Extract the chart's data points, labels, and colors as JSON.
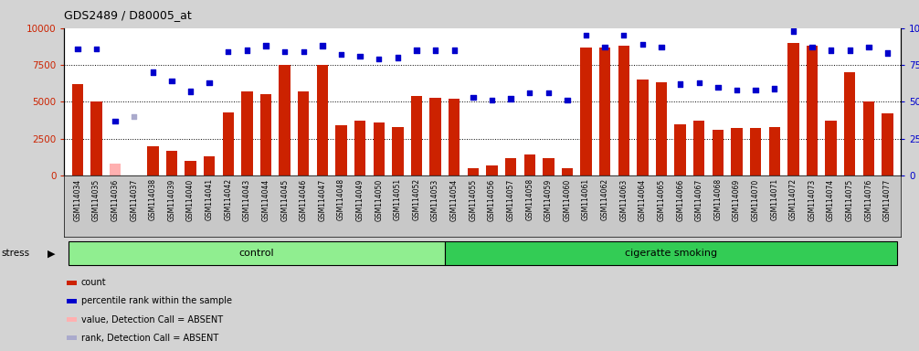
{
  "title": "GDS2489 / D80005_at",
  "samples": [
    "GSM114034",
    "GSM114035",
    "GSM114036",
    "GSM114037",
    "GSM114038",
    "GSM114039",
    "GSM114040",
    "GSM114041",
    "GSM114042",
    "GSM114043",
    "GSM114044",
    "GSM114045",
    "GSM114046",
    "GSM114047",
    "GSM114048",
    "GSM114049",
    "GSM114050",
    "GSM114051",
    "GSM114052",
    "GSM114053",
    "GSM114054",
    "GSM114055",
    "GSM114056",
    "GSM114057",
    "GSM114058",
    "GSM114059",
    "GSM114060",
    "GSM114061",
    "GSM114062",
    "GSM114063",
    "GSM114064",
    "GSM114065",
    "GSM114066",
    "GSM114067",
    "GSM114068",
    "GSM114069",
    "GSM114070",
    "GSM114071",
    "GSM114072",
    "GSM114073",
    "GSM114074",
    "GSM114075",
    "GSM114076",
    "GSM114077"
  ],
  "bar_values": [
    6200,
    5000,
    800,
    0,
    2000,
    1700,
    1000,
    1300,
    4300,
    5700,
    5500,
    7500,
    5700,
    7500,
    3400,
    3700,
    3600,
    3300,
    5400,
    5300,
    5200,
    500,
    700,
    1200,
    1400,
    1200,
    500,
    8700,
    8700,
    8800,
    6500,
    6300,
    3500,
    3700,
    3100,
    3200,
    3200,
    3300,
    9000,
    8800,
    3700,
    7000,
    5000,
    4200
  ],
  "absent_bar": [
    false,
    false,
    true,
    false,
    false,
    false,
    false,
    false,
    false,
    false,
    false,
    false,
    false,
    false,
    false,
    false,
    false,
    false,
    false,
    false,
    false,
    false,
    false,
    false,
    false,
    false,
    false,
    false,
    false,
    false,
    false,
    false,
    false,
    false,
    false,
    false,
    false,
    false,
    false,
    false,
    false,
    false,
    false,
    false
  ],
  "dot_values": [
    8600,
    8600,
    3700,
    4000,
    7000,
    6400,
    5700,
    6300,
    8400,
    8500,
    8800,
    8400,
    8400,
    8800,
    8200,
    8100,
    7900,
    8000,
    8500,
    8500,
    8500,
    5300,
    5100,
    5200,
    5600,
    5600,
    5100,
    9500,
    8700,
    9500,
    8900,
    8700,
    6200,
    6300,
    6000,
    5800,
    5800,
    5900,
    9800,
    8700,
    8500,
    8500,
    8700,
    8300
  ],
  "absent_dot": [
    false,
    false,
    false,
    true,
    false,
    false,
    false,
    false,
    false,
    false,
    false,
    false,
    false,
    false,
    false,
    false,
    false,
    false,
    false,
    false,
    false,
    false,
    false,
    false,
    false,
    false,
    false,
    false,
    false,
    false,
    false,
    false,
    false,
    false,
    false,
    false,
    false,
    false,
    false,
    false,
    false,
    false,
    false,
    false
  ],
  "groups": [
    {
      "label": "control",
      "start": 0,
      "end": 20,
      "color": "#90EE90"
    },
    {
      "label": "cigeratte smoking",
      "start": 20,
      "end": 44,
      "color": "#33CC55"
    }
  ],
  "stress_label": "stress",
  "bar_color": "#CC2200",
  "bar_absent_color": "#FFB0B0",
  "dot_color": "#0000CC",
  "dot_absent_color": "#AAAACC",
  "left_axis_color": "#CC2200",
  "right_axis_color": "#0000CC",
  "ylim_left": [
    0,
    10000
  ],
  "ylim_right": [
    0,
    100
  ],
  "yticks_left": [
    0,
    2500,
    5000,
    7500,
    10000
  ],
  "yticks_right": [
    0,
    25,
    50,
    75,
    100
  ],
  "grid_values": [
    2500,
    5000,
    7500
  ],
  "bg_color": "#D3D3D3",
  "plot_bg_color": "#FFFFFF",
  "tick_bg_color": "#C8C8C8"
}
